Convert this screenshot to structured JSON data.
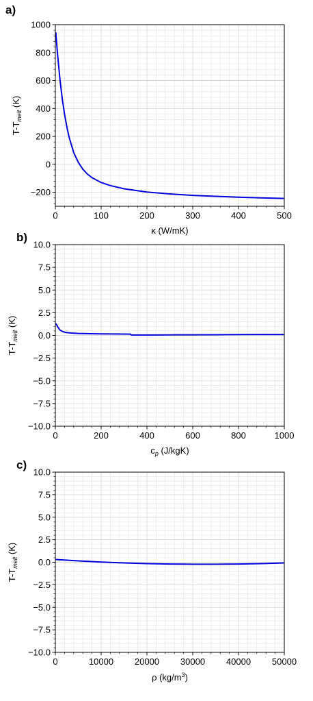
{
  "chart_data": [
    {
      "type": "line",
      "panel_label": "a)",
      "xlabel": "κ (W/mK)",
      "ylabel": "T-T",
      "ylabel_sub": "melt",
      "ylabel_unit": " (K)",
      "xlim": [
        0,
        500
      ],
      "ylim": [
        -300,
        1000
      ],
      "xticks": [
        0,
        100,
        200,
        300,
        400,
        500
      ],
      "xtick_labels": [
        "0",
        "100",
        "200",
        "300",
        "400",
        "500"
      ],
      "yticks": [
        -200,
        0,
        200,
        400,
        600,
        800,
        1000
      ],
      "ytick_labels": [
        "−200",
        "0",
        "200",
        "400",
        "600",
        "800",
        "1000"
      ],
      "grid": true,
      "series": [
        {
          "color": "#0000dd",
          "x": [
            1,
            2,
            5,
            10,
            15,
            20,
            25,
            30,
            40,
            50,
            60,
            70,
            80,
            100,
            120,
            150,
            200,
            250,
            300,
            350,
            400,
            450,
            500
          ],
          "y": [
            945,
            900,
            780,
            610,
            470,
            360,
            270,
            195,
            85,
            15,
            -35,
            -70,
            -95,
            -130,
            -152,
            -175,
            -198,
            -212,
            -222,
            -229,
            -235,
            -240,
            -244
          ]
        }
      ]
    },
    {
      "type": "line",
      "panel_label": "b)",
      "xlabel": "c",
      "xlabel_sub": "p",
      "xlabel_unit": " (J/kgK)",
      "ylabel": "T-T",
      "ylabel_sub": "melt",
      "ylabel_unit": " (K)",
      "xlim": [
        0,
        1000
      ],
      "ylim": [
        -10,
        10
      ],
      "xticks": [
        0,
        200,
        400,
        600,
        800,
        1000
      ],
      "xtick_labels": [
        "0",
        "200",
        "400",
        "600",
        "800",
        "1000"
      ],
      "yticks": [
        -10,
        -7.5,
        -5,
        -2.5,
        0,
        2.5,
        5,
        7.5,
        10
      ],
      "ytick_labels": [
        "−10.0",
        "−7.5",
        "−5.0",
        "−2.5",
        "0.0",
        "2.5",
        "5.0",
        "7.5",
        "10.0"
      ],
      "grid": true,
      "series": [
        {
          "color": "#0000dd",
          "x": [
            1,
            5,
            10,
            20,
            30,
            40,
            50,
            70,
            100,
            150,
            200,
            250,
            300,
            328,
            330,
            335,
            400,
            500,
            600,
            700,
            800,
            900,
            1000
          ],
          "y": [
            1.3,
            1.2,
            0.95,
            0.6,
            0.45,
            0.36,
            0.31,
            0.26,
            0.22,
            0.19,
            0.17,
            0.16,
            0.15,
            0.14,
            0.07,
            0.05,
            0.05,
            0.06,
            0.07,
            0.08,
            0.09,
            0.1,
            0.1
          ]
        }
      ]
    },
    {
      "type": "line",
      "panel_label": "c)",
      "xlabel": "ρ (kg/m",
      "xlabel_sup": "3",
      "xlabel_unit": ")",
      "ylabel": "T-T",
      "ylabel_sub": "melt",
      "ylabel_unit": " (K)",
      "xlim": [
        0,
        50000
      ],
      "ylim": [
        -10,
        10
      ],
      "xticks": [
        0,
        10000,
        20000,
        30000,
        40000,
        50000
      ],
      "xtick_labels": [
        "0",
        "10000",
        "20000",
        "30000",
        "40000",
        "50000"
      ],
      "yticks": [
        -10,
        -7.5,
        -5,
        -2.5,
        0,
        2.5,
        5,
        7.5,
        10
      ],
      "ytick_labels": [
        "−10.0",
        "−7.5",
        "−5.0",
        "−2.5",
        "0.0",
        "2.5",
        "5.0",
        "7.5",
        "10.0"
      ],
      "grid": true,
      "series": [
        {
          "color": "#0000dd",
          "x": [
            100,
            5000,
            10000,
            15000,
            20000,
            25000,
            30000,
            35000,
            40000,
            45000,
            50000
          ],
          "y": [
            0.3,
            0.15,
            0.02,
            -0.08,
            -0.15,
            -0.2,
            -0.22,
            -0.22,
            -0.2,
            -0.15,
            -0.08
          ]
        }
      ]
    }
  ]
}
